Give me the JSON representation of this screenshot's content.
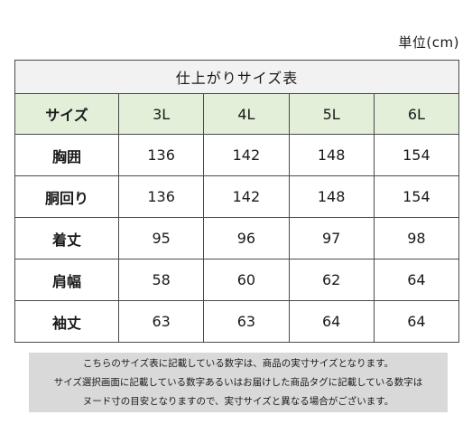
{
  "unit_label": "単位(cm)",
  "table": {
    "title": "仕上がりサイズ表",
    "header": {
      "label": "サイズ",
      "sizes": [
        "3L",
        "4L",
        "5L",
        "6L"
      ]
    },
    "rows": [
      {
        "label": "胸囲",
        "values": [
          "136",
          "142",
          "148",
          "154"
        ]
      },
      {
        "label": "胴回り",
        "values": [
          "136",
          "142",
          "148",
          "154"
        ]
      },
      {
        "label": "着丈",
        "values": [
          "95",
          "96",
          "97",
          "98"
        ]
      },
      {
        "label": "肩幅",
        "values": [
          "58",
          "60",
          "62",
          "64"
        ]
      },
      {
        "label": "袖丈",
        "values": [
          "63",
          "63",
          "64",
          "64"
        ]
      }
    ]
  },
  "note": {
    "lines": [
      "こちらのサイズ表に記載している数字は、商品の実寸サイズとなります。",
      "サイズ選択画面に記載している数字あるいはお届けした商品タグに記載している数字は",
      "ヌード寸の目安となりますので、実寸サイズと異なる場合がございます。"
    ]
  }
}
